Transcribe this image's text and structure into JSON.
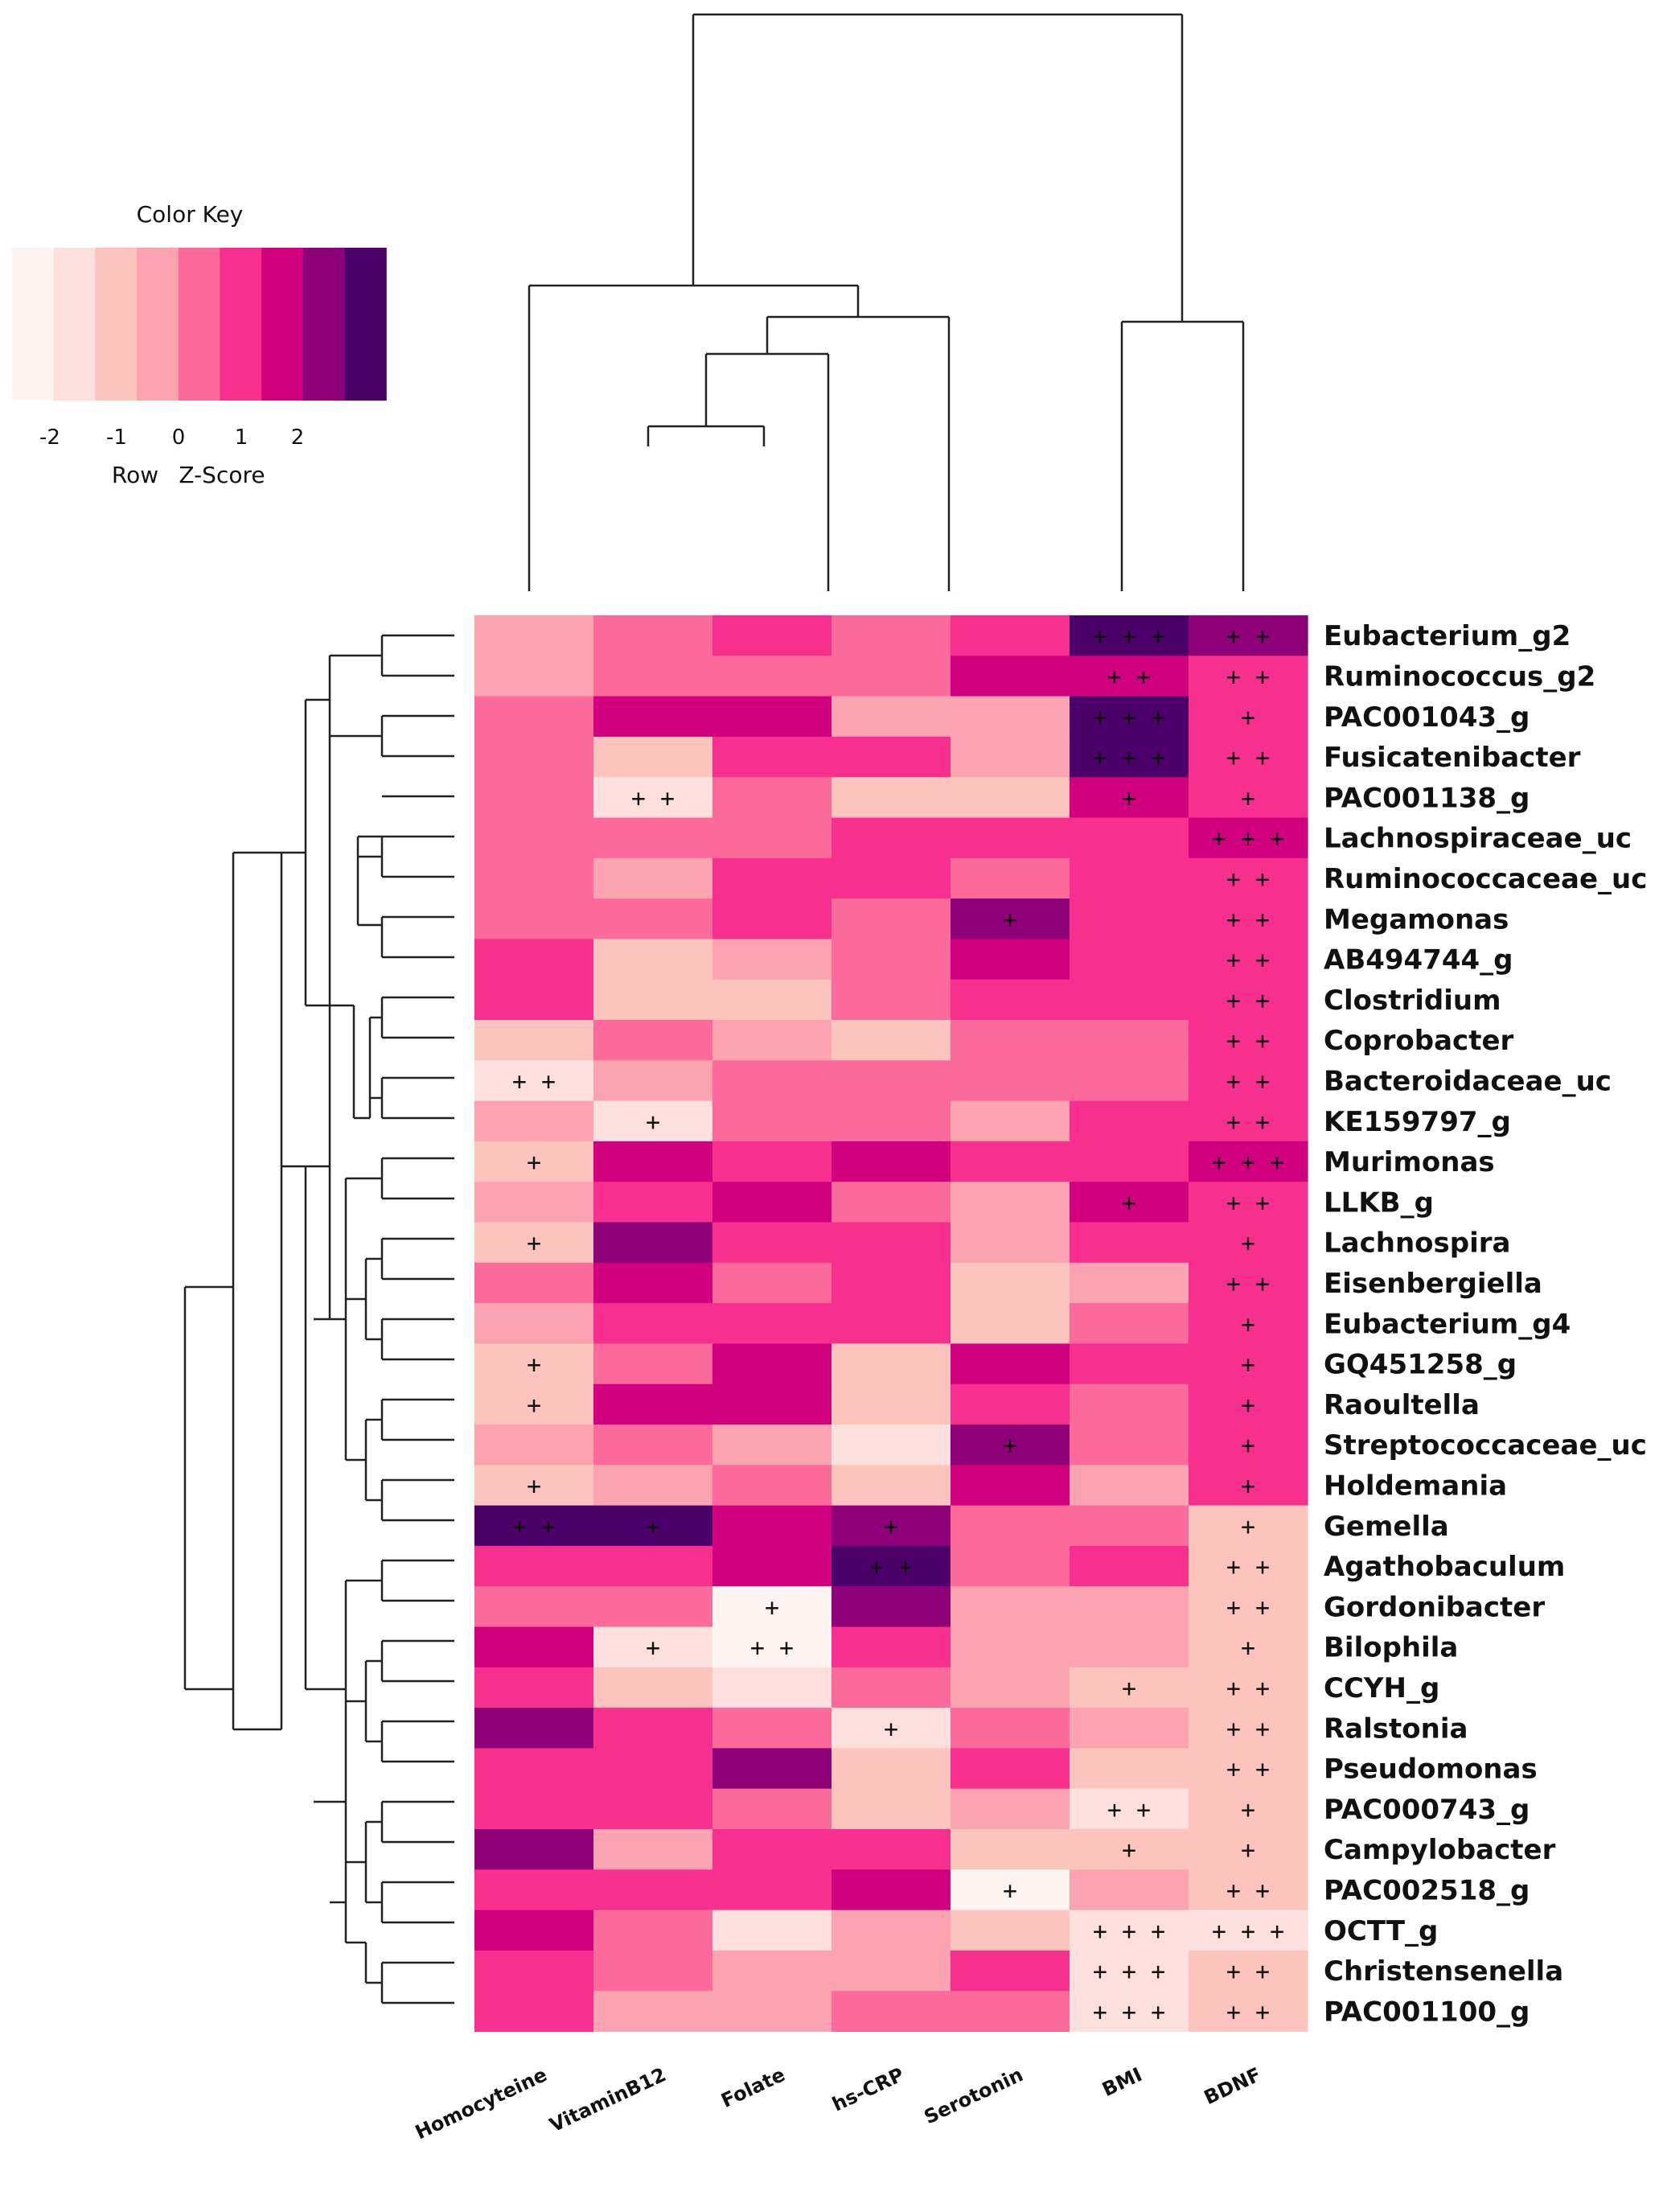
{
  "chart_data": {
    "type": "heatmap",
    "title": "",
    "color_key": {
      "title": "Color Key",
      "tick_labels": [
        "-2",
        "-1",
        "0",
        "1",
        "2"
      ],
      "axis_label_row": "Row",
      "axis_label_score": "Z-Score",
      "palette": [
        "#fef4f1",
        "#fde0de",
        "#fcc4bd",
        "#fca3b2",
        "#fb6a9a",
        "#f7308f",
        "#d0007e",
        "#8e0178",
        "#4c0069"
      ]
    },
    "columns": [
      "Homocyteine",
      "VitaminB12",
      "Folate",
      "hs-CRP",
      "Serotonin",
      "BMI",
      "BDNF"
    ],
    "rows": [
      "Eubacterium_g2",
      "Ruminococcus_g2",
      "PAC001043_g",
      "Fusicatenibacter",
      "PAC001138_g",
      "Lachnospiraceae_uc",
      "Ruminococcaceae_uc",
      "Megamonas",
      "AB494744_g",
      "Clostridium",
      "Coprobacter",
      "Bacteroidaceae_uc",
      "KE159797_g",
      "Murimonas",
      "LLKB_g",
      "Lachnospira",
      "Eisenbergiella",
      "Eubacterium_g4",
      "GQ451258_g",
      "Raoultella",
      "Streptococcaceae_uc",
      "Holdemania",
      "Gemella",
      "Agathobaculum",
      "Gordonibacter",
      "Bilophila",
      "CCYH_g",
      "Ralstonia",
      "Pseudomonas",
      "PAC000743_g",
      "Campylobacter",
      "PAC002518_g",
      "OCTT_g",
      "Christensenella",
      "PAC001100_g"
    ],
    "values": [
      [
        3,
        4,
        5,
        4,
        5,
        8,
        7
      ],
      [
        3,
        4,
        4,
        4,
        6,
        6,
        5
      ],
      [
        4,
        6,
        6,
        3,
        3,
        8,
        5
      ],
      [
        4,
        2,
        5,
        5,
        3,
        8,
        5
      ],
      [
        4,
        1,
        4,
        2,
        2,
        6,
        5
      ],
      [
        4,
        4,
        4,
        5,
        5,
        5,
        6
      ],
      [
        4,
        3,
        5,
        5,
        4,
        5,
        5
      ],
      [
        4,
        4,
        5,
        4,
        7,
        5,
        5
      ],
      [
        5,
        2,
        3,
        4,
        6,
        5,
        5
      ],
      [
        5,
        2,
        2,
        4,
        5,
        5,
        5
      ],
      [
        2,
        4,
        3,
        2,
        4,
        4,
        5
      ],
      [
        1,
        3,
        4,
        4,
        4,
        4,
        5
      ],
      [
        3,
        1,
        4,
        4,
        3,
        5,
        5
      ],
      [
        2,
        6,
        5,
        6,
        5,
        5,
        6
      ],
      [
        3,
        5,
        6,
        4,
        3,
        6,
        5
      ],
      [
        2,
        7,
        5,
        5,
        3,
        5,
        5
      ],
      [
        4,
        6,
        4,
        5,
        2,
        3,
        5
      ],
      [
        3,
        5,
        5,
        5,
        2,
        4,
        5
      ],
      [
        2,
        4,
        6,
        2,
        6,
        5,
        5
      ],
      [
        2,
        6,
        6,
        2,
        5,
        4,
        5
      ],
      [
        3,
        4,
        3,
        1,
        7,
        4,
        5
      ],
      [
        2,
        3,
        4,
        2,
        6,
        3,
        5
      ],
      [
        8,
        8,
        6,
        7,
        4,
        4,
        2
      ],
      [
        5,
        5,
        6,
        8,
        4,
        5,
        2
      ],
      [
        4,
        4,
        0,
        7,
        3,
        3,
        2
      ],
      [
        6,
        1,
        0,
        5,
        3,
        3,
        2
      ],
      [
        5,
        2,
        1,
        4,
        3,
        2,
        2
      ],
      [
        7,
        5,
        4,
        1,
        4,
        3,
        2
      ],
      [
        5,
        5,
        7,
        2,
        5,
        2,
        2
      ],
      [
        5,
        5,
        4,
        2,
        3,
        1,
        2
      ],
      [
        7,
        3,
        5,
        5,
        2,
        2,
        2
      ],
      [
        5,
        5,
        5,
        6,
        0,
        3,
        2
      ],
      [
        6,
        4,
        1,
        3,
        2,
        1,
        1
      ],
      [
        5,
        4,
        3,
        3,
        5,
        1,
        2
      ],
      [
        5,
        3,
        3,
        4,
        4,
        1,
        2
      ]
    ],
    "marks": [
      [
        "",
        "",
        "",
        "",
        "",
        "+ + +",
        "+ +"
      ],
      [
        "",
        "",
        "",
        "",
        "",
        "+ +",
        "+ +"
      ],
      [
        "",
        "",
        "",
        "",
        "",
        "+ + +",
        "+"
      ],
      [
        "",
        "",
        "",
        "",
        "",
        "+ + +",
        "+ +"
      ],
      [
        "",
        "+ +",
        "",
        "",
        "",
        "+",
        "+"
      ],
      [
        "",
        "",
        "",
        "",
        "",
        "",
        "+ + +"
      ],
      [
        "",
        "",
        "",
        "",
        "",
        "",
        "+ +"
      ],
      [
        "",
        "",
        "",
        "",
        "+",
        "",
        "+ +"
      ],
      [
        "",
        "",
        "",
        "",
        "",
        "",
        "+ +"
      ],
      [
        "",
        "",
        "",
        "",
        "",
        "",
        "+ +"
      ],
      [
        "",
        "",
        "",
        "",
        "",
        "",
        "+ +"
      ],
      [
        "+ +",
        "",
        "",
        "",
        "",
        "",
        "+ +"
      ],
      [
        "",
        "+",
        "",
        "",
        "",
        "",
        "+ +"
      ],
      [
        "+",
        "",
        "",
        "",
        "",
        "",
        "+ + +"
      ],
      [
        "",
        "",
        "",
        "",
        "",
        "+",
        "+ +"
      ],
      [
        "+",
        "",
        "",
        "",
        "",
        "",
        "+"
      ],
      [
        "",
        "",
        "",
        "",
        "",
        "",
        "+ +"
      ],
      [
        "",
        "",
        "",
        "",
        "",
        "",
        "+"
      ],
      [
        "+",
        "",
        "",
        "",
        "",
        "",
        "+"
      ],
      [
        "+",
        "",
        "",
        "",
        "",
        "",
        "+"
      ],
      [
        "",
        "",
        "",
        "",
        "+",
        "",
        "+"
      ],
      [
        "+",
        "",
        "",
        "",
        "",
        "",
        "+"
      ],
      [
        "+ +",
        "+",
        "",
        "+",
        "",
        "",
        "+"
      ],
      [
        "",
        "",
        "",
        "+ +",
        "",
        "",
        "+ +"
      ],
      [
        "",
        "",
        "+",
        "",
        "",
        "",
        "+ +"
      ],
      [
        "",
        "+",
        "+ +",
        "",
        "",
        "",
        "+"
      ],
      [
        "",
        "",
        "",
        "",
        "",
        "+",
        "+ +"
      ],
      [
        "",
        "",
        "",
        "+",
        "",
        "",
        "+ +"
      ],
      [
        "",
        "",
        "",
        "",
        "",
        "",
        "+ +"
      ],
      [
        "",
        "",
        "",
        "",
        "",
        "+ +",
        "+"
      ],
      [
        "",
        "",
        "",
        "",
        "",
        "+",
        "+"
      ],
      [
        "",
        "",
        "",
        "",
        "+",
        "",
        "+ +"
      ],
      [
        "",
        "",
        "",
        "",
        "",
        "+ + +",
        "+ + +"
      ],
      [
        "",
        "",
        "",
        "",
        "",
        "+ + +",
        "+ +"
      ],
      [
        "",
        "",
        "",
        "",
        "",
        "+ + +",
        "+ +"
      ]
    ],
    "legend_position": "top-left"
  }
}
